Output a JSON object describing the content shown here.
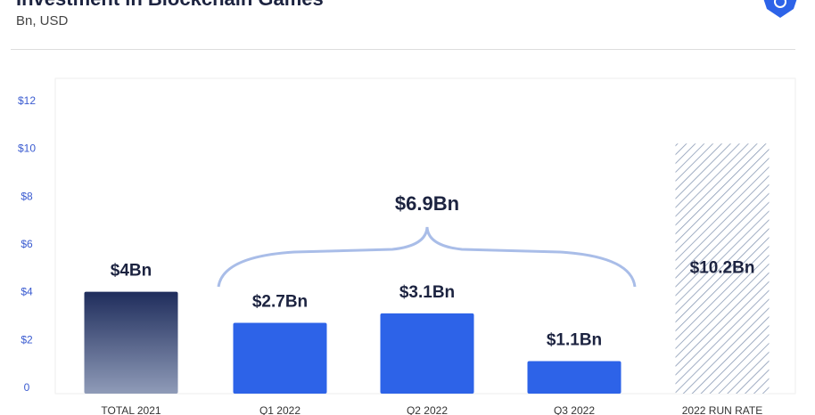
{
  "header": {
    "title": "Investment in Blockchain Games",
    "subtitle": "Bn, USD"
  },
  "chart_data": {
    "type": "bar",
    "title": "Investment in Blockchain Games",
    "subtitle": "Bn, USD",
    "categories": [
      "TOTAL 2021",
      "Q1 2022",
      "Q2 2022",
      "Q3 2022",
      "2022 RUN RATE"
    ],
    "values": [
      4,
      2.7,
      3.1,
      1.1,
      10.2
    ],
    "data_labels": [
      "$4Bn",
      "$2.7Bn",
      "$3.1Bn",
      "$1.1Bn",
      "$10.2Bn"
    ],
    "bar_styles": [
      "gradient-navy",
      "solid-blue",
      "solid-blue",
      "solid-blue",
      "hatched"
    ],
    "yticks": [
      "0",
      "$2",
      "$4",
      "$6",
      "$8",
      "$10",
      "$12"
    ],
    "ylim": [
      0,
      12
    ],
    "grid": false,
    "annotation": {
      "label": "$6.9Bn",
      "spans": [
        "Q1 2022",
        "Q3 2022"
      ]
    },
    "colors": {
      "navy": "#1f2d5c",
      "blue": "#2d63e8",
      "hatch": "#8a9ab5",
      "ytick": "#3a5bd0",
      "label": "#1c2340"
    }
  }
}
